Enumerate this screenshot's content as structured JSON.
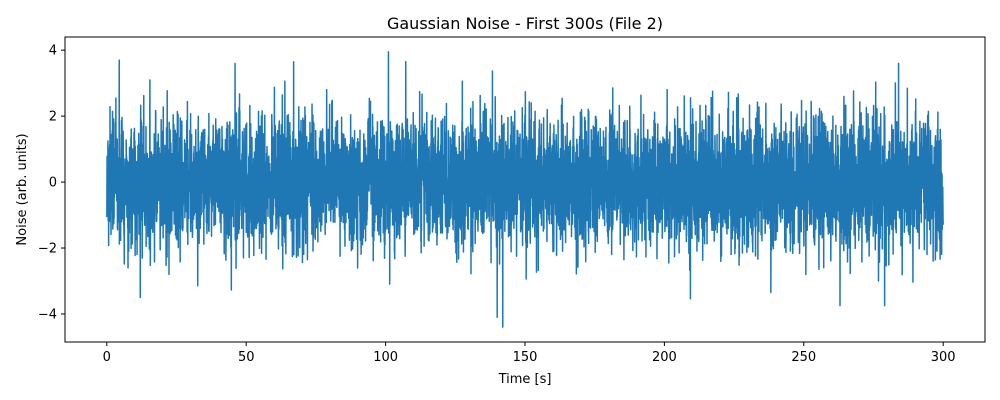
{
  "chart_data": {
    "type": "line",
    "title": "Gaussian Noise - First 300s (File 2)",
    "xlabel": "Time [s]",
    "ylabel": "Noise (arb. units)",
    "xlim": [
      -15,
      315
    ],
    "ylim": [
      -4.85,
      4.4
    ],
    "xticks": [
      0,
      50,
      100,
      150,
      200,
      250,
      300
    ],
    "yticks": [
      -4,
      -2,
      0,
      2,
      4
    ],
    "grid": false,
    "legend": "none",
    "series": [
      {
        "color": "#1f77b4",
        "x_range": [
          0,
          300
        ],
        "distribution": "gaussian",
        "mean": 0,
        "std": 1,
        "approx_max": 3.95,
        "approx_min": -4.4,
        "peaks": [
          {
            "x": 101,
            "y": 3.95
          },
          {
            "x": 67,
            "y": 3.65
          },
          {
            "x": 46,
            "y": 3.6
          },
          {
            "x": 284,
            "y": 3.6
          },
          {
            "x": 142,
            "y": -4.4
          },
          {
            "x": 140,
            "y": -4.1
          },
          {
            "x": 279,
            "y": -3.75
          },
          {
            "x": 263,
            "y": -3.75
          },
          {
            "x": 12,
            "y": -3.5
          }
        ]
      }
    ]
  }
}
